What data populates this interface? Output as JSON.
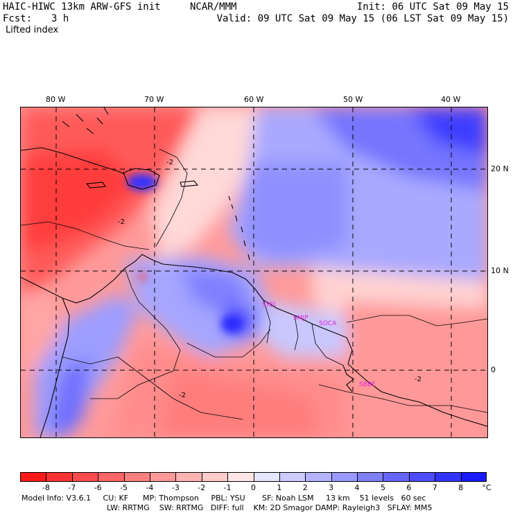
{
  "header": {
    "title_left": "HAIC-HIWC 13km ARW-GFS init",
    "org": "NCAR/MMM",
    "init": "Init: 06 UTC Sat 09 May 15",
    "fcst_label": "Fcst:",
    "fcst_value": "3 h",
    "valid": "Valid: 09 UTC Sat 09 May 15 (06 LST Sat 09 May 15)",
    "field": "Lifted index"
  },
  "map": {
    "lon_labels": [
      "80 W",
      "70 W",
      "60 W",
      "50 W",
      "40 W"
    ],
    "lat_labels": [
      "20 N",
      "10 N",
      "0"
    ],
    "contour_labels": [
      "-2",
      "-2",
      "-2",
      "-2"
    ],
    "station_labels": [
      "SYEI",
      "SMJP",
      "SOCA",
      "SBBE"
    ],
    "station_color": "#e020e0"
  },
  "colorbar": {
    "labels": [
      "-8",
      "-7",
      "-6",
      "-5",
      "-4",
      "-3",
      "-2",
      "-1",
      "0",
      "1",
      "2",
      "3",
      "4",
      "5",
      "6",
      "7",
      "8"
    ],
    "unit": "°C",
    "colors": [
      "#ff1a1a",
      "#ff3333",
      "#ff4d4d",
      "#ff6666",
      "#ff8080",
      "#ff9999",
      "#ffb3b3",
      "#ffcccc",
      "#ffe6e6",
      "#e6e6ff",
      "#ccccff",
      "#b3b3ff",
      "#9999ff",
      "#8080ff",
      "#6666ff",
      "#4d4dff",
      "#3333ff",
      "#1a1aff"
    ]
  },
  "footer": {
    "line1": "Model Info: V3.6.1     CU: KF      MP: Thompson     PBL: YSU       SF: Noah LSM     13 km    51 levels   60 sec",
    "line2": "LW: RRTMG    SW: RRTMG   DIFF: full    KM: 2D Smagor DAMP: Rayleigh3   SFLAY: MM5"
  }
}
